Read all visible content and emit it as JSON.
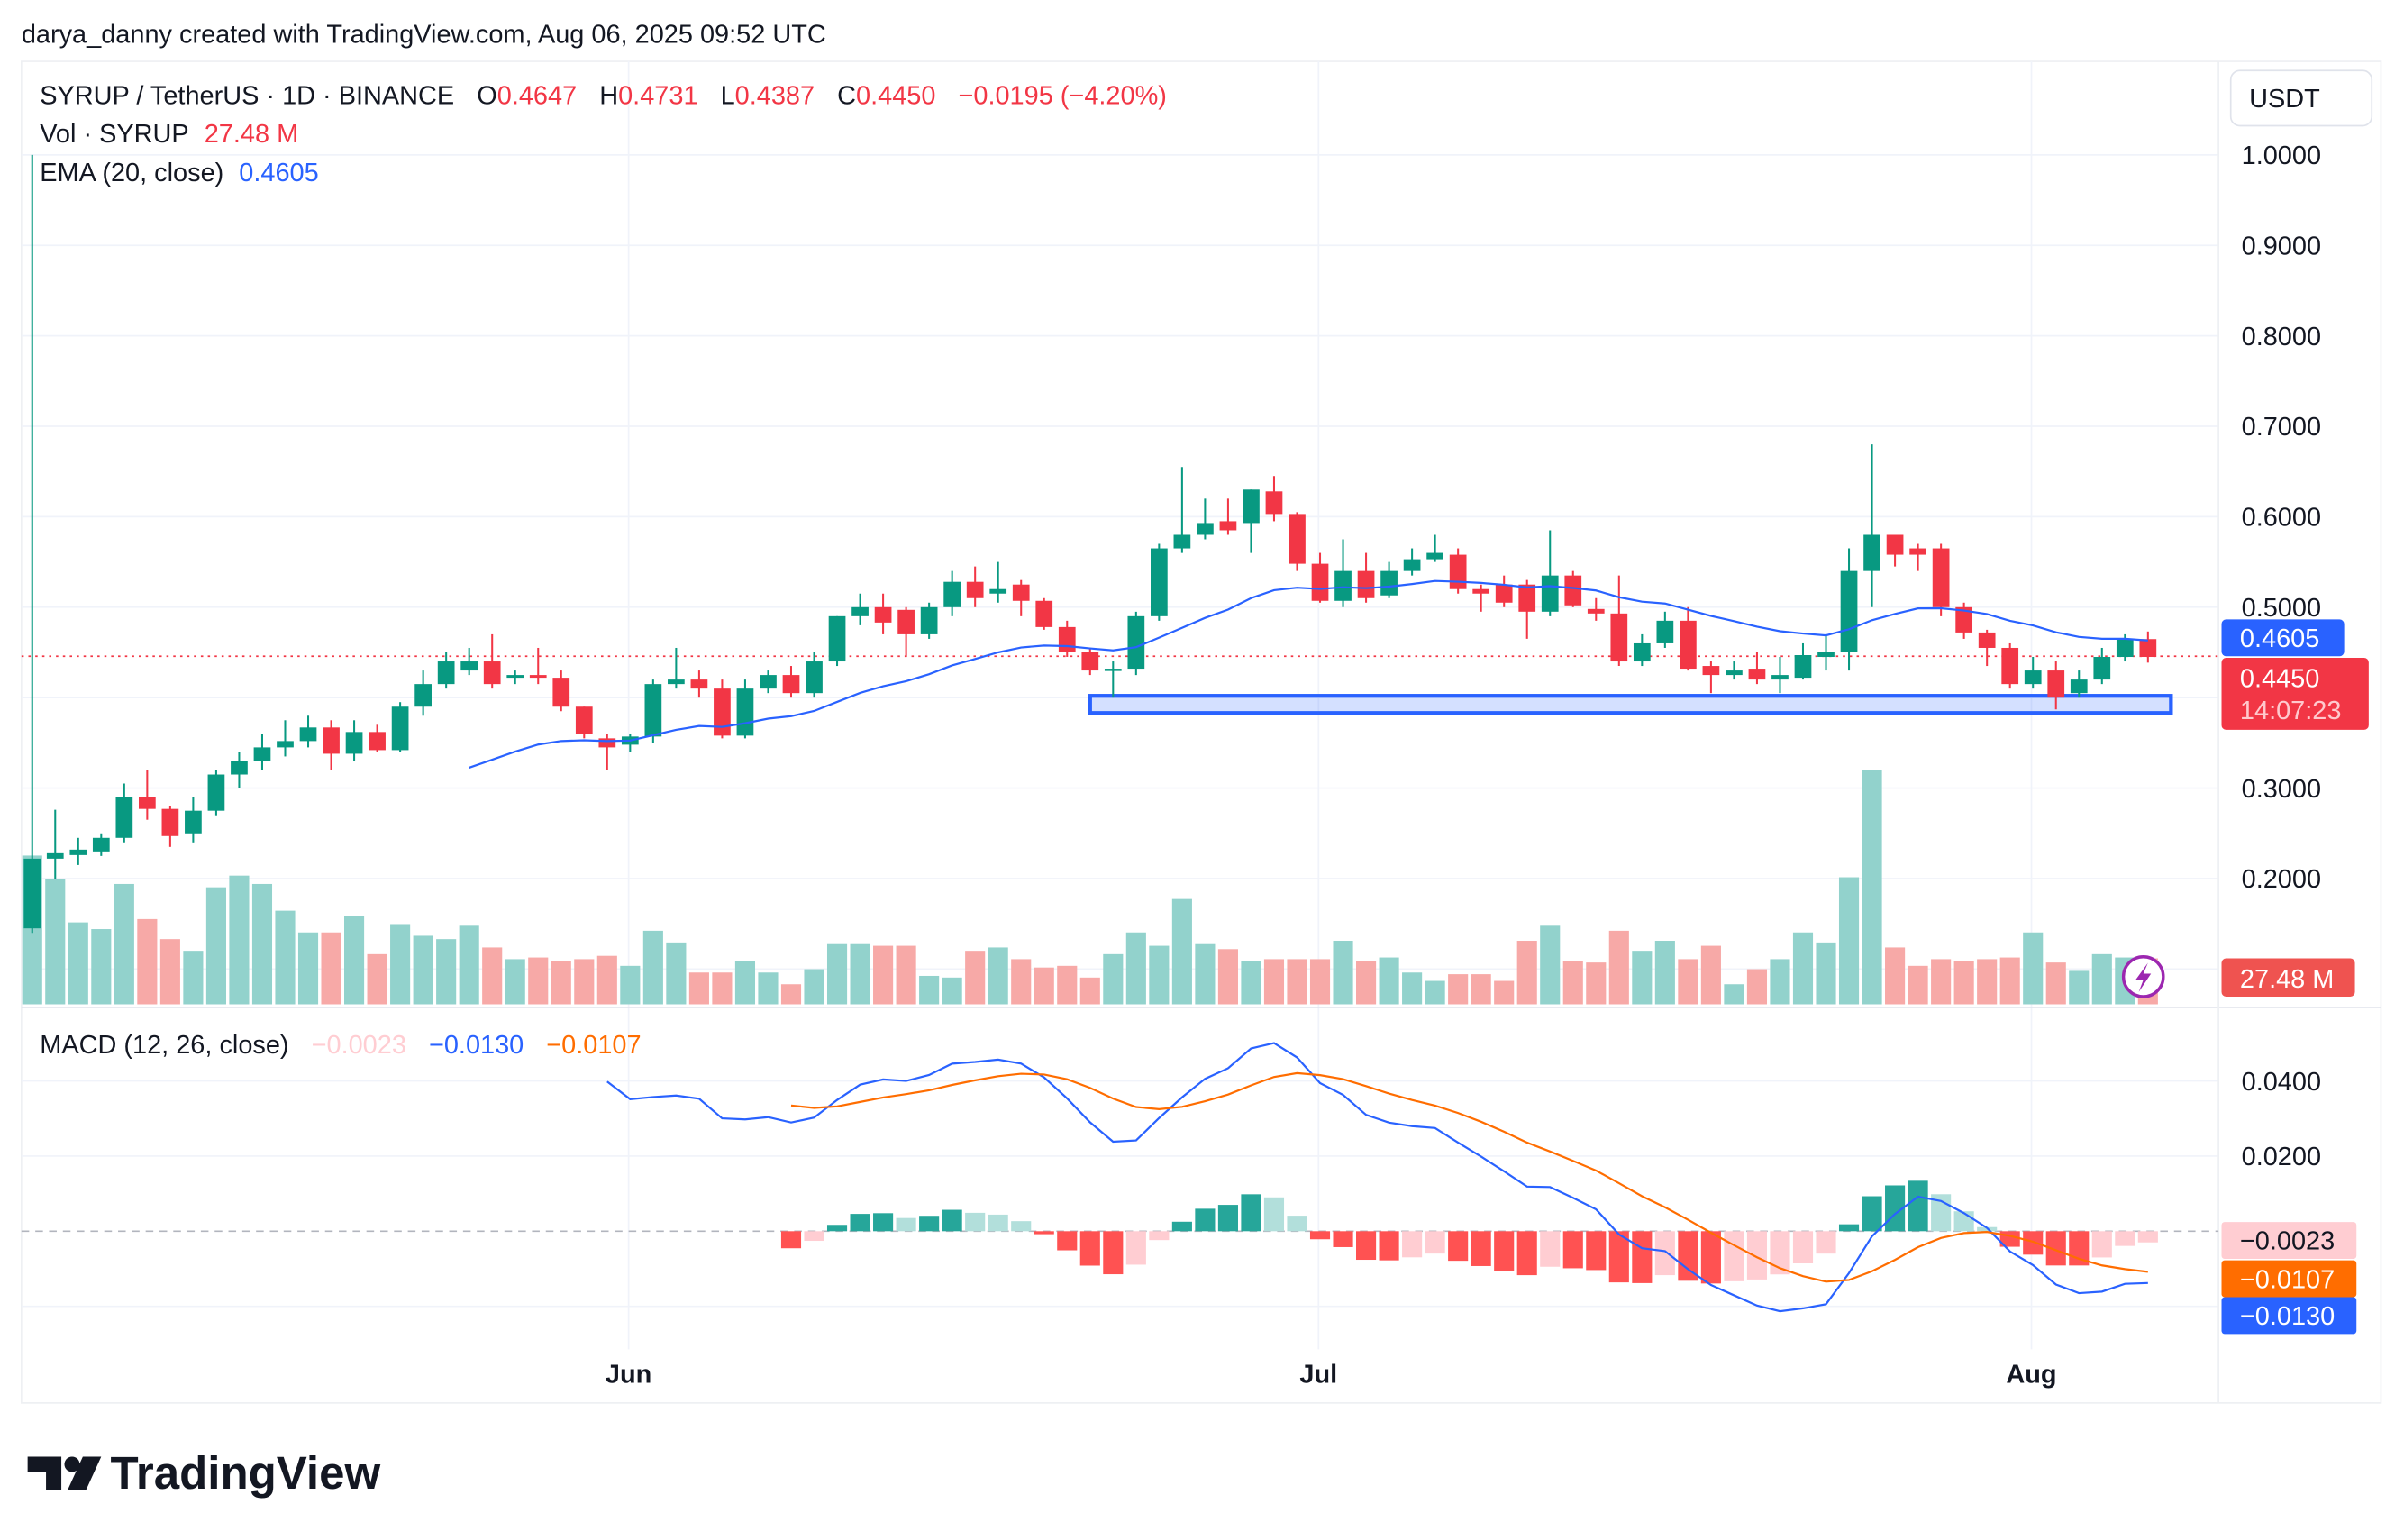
{
  "header": {
    "credit": "darya_danny created with TradingView.com, Aug 06, 2025 09:52 UTC"
  },
  "legend": {
    "symbol": "SYRUP / TetherUS · 1D · BINANCE",
    "o_label": "O",
    "o_value": "0.4647",
    "h_label": "H",
    "h_value": "0.4731",
    "l_label": "L",
    "l_value": "0.4387",
    "c_label": "C",
    "c_value": "0.4450",
    "change": "−0.0195 (−4.20%)",
    "vol_label": "Vol · SYRUP",
    "vol_value": "27.48 M",
    "ema_label": "EMA (20, close)",
    "ema_value": "0.4605",
    "macd_label": "MACD (12, 26, close)",
    "macd_hist": "−0.0023",
    "macd_line": "−0.0130",
    "macd_signal": "−0.0107"
  },
  "axis": {
    "currency": "USDT",
    "price_ticks": [
      "1.0000",
      "0.9000",
      "0.8000",
      "0.7000",
      "0.6000",
      "0.5000",
      "0.3000",
      "0.2000"
    ],
    "price_tick_values": [
      1.0,
      0.9,
      0.8,
      0.7,
      0.6,
      0.5,
      0.3,
      0.2
    ],
    "macd_ticks": [
      "0.0400",
      "0.0200"
    ],
    "macd_tick_values": [
      0.04,
      0.02
    ],
    "time_labels": [
      "Jun",
      "Jul",
      "Aug"
    ],
    "time_label_dates": [
      "2025-06-01",
      "2025-07-01",
      "2025-08-01"
    ]
  },
  "badges": {
    "ema": "0.4605",
    "price": "0.4450",
    "countdown": "14:07:23",
    "volume": "27.48 M",
    "macd_hist": "−0.0023",
    "macd_signal": "−0.0107",
    "macd_line": "−0.0130"
  },
  "colors": {
    "up": "#089981",
    "down": "#f23645",
    "ema": "#2962ff",
    "macd": "#2962ff",
    "signal": "#ff6d00",
    "vol_up": "#92d2cc",
    "vol_down": "#f7a9a7",
    "zone": "#2962ff"
  },
  "support_zone": {
    "from_date": "2025-06-21",
    "to_date": "2025-08-07",
    "low": 0.383,
    "high": 0.402
  },
  "footer": {
    "brand": "TradingView"
  },
  "chart_data": {
    "type": "candlestick",
    "title": "SYRUP / TetherUS · 1D · BINANCE",
    "ylim": [
      0.1,
      1.0
    ],
    "dates": [
      "2025-05-06",
      "2025-05-07",
      "2025-05-08",
      "2025-05-09",
      "2025-05-10",
      "2025-05-11",
      "2025-05-12",
      "2025-05-13",
      "2025-05-14",
      "2025-05-15",
      "2025-05-16",
      "2025-05-17",
      "2025-05-18",
      "2025-05-19",
      "2025-05-20",
      "2025-05-21",
      "2025-05-22",
      "2025-05-23",
      "2025-05-24",
      "2025-05-25",
      "2025-05-26",
      "2025-05-27",
      "2025-05-28",
      "2025-05-29",
      "2025-05-30",
      "2025-05-31",
      "2025-06-01",
      "2025-06-02",
      "2025-06-03",
      "2025-06-04",
      "2025-06-05",
      "2025-06-06",
      "2025-06-07",
      "2025-06-08",
      "2025-06-09",
      "2025-06-10",
      "2025-06-11",
      "2025-06-12",
      "2025-06-13",
      "2025-06-14",
      "2025-06-15",
      "2025-06-16",
      "2025-06-17",
      "2025-06-18",
      "2025-06-19",
      "2025-06-20",
      "2025-06-21",
      "2025-06-22",
      "2025-06-23",
      "2025-06-24",
      "2025-06-25",
      "2025-06-26",
      "2025-06-27",
      "2025-06-28",
      "2025-06-29",
      "2025-06-30",
      "2025-07-01",
      "2025-07-02",
      "2025-07-03",
      "2025-07-04",
      "2025-07-05",
      "2025-07-06",
      "2025-07-07",
      "2025-07-08",
      "2025-07-09",
      "2025-07-10",
      "2025-07-11",
      "2025-07-12",
      "2025-07-13",
      "2025-07-14",
      "2025-07-15",
      "2025-07-16",
      "2025-07-17",
      "2025-07-18",
      "2025-07-19",
      "2025-07-20",
      "2025-07-21",
      "2025-07-22",
      "2025-07-23",
      "2025-07-24",
      "2025-07-25",
      "2025-07-26",
      "2025-07-27",
      "2025-07-28",
      "2025-07-29",
      "2025-07-30",
      "2025-07-31",
      "2025-08-01",
      "2025-08-02",
      "2025-08-03",
      "2025-08-04",
      "2025-08-05",
      "2025-08-06"
    ],
    "open": [
      0.145,
      0.222,
      0.226,
      0.23,
      0.245,
      0.29,
      0.277,
      0.25,
      0.275,
      0.315,
      0.33,
      0.345,
      0.352,
      0.367,
      0.338,
      0.362,
      0.342,
      0.39,
      0.415,
      0.43,
      0.44,
      0.422,
      0.425,
      0.422,
      0.39,
      0.355,
      0.348,
      0.357,
      0.415,
      0.42,
      0.41,
      0.358,
      0.41,
      0.425,
      0.405,
      0.44,
      0.49,
      0.5,
      0.497,
      0.47,
      0.5,
      0.528,
      0.515,
      0.525,
      0.507,
      0.478,
      0.45,
      0.43,
      0.432,
      0.49,
      0.565,
      0.58,
      0.595,
      0.593,
      0.628,
      0.603,
      0.548,
      0.507,
      0.54,
      0.513,
      0.54,
      0.553,
      0.558,
      0.52,
      0.525,
      0.525,
      0.495,
      0.535,
      0.498,
      0.493,
      0.44,
      0.46,
      0.485,
      0.435,
      0.425,
      0.432,
      0.42,
      0.422,
      0.445,
      0.45,
      0.54,
      0.58,
      0.565,
      0.565,
      0.5,
      0.472,
      0.455,
      0.415,
      0.43,
      0.405,
      0.42,
      0.445,
      0.4647
    ],
    "high": [
      1.0,
      0.276,
      0.245,
      0.25,
      0.305,
      0.32,
      0.28,
      0.29,
      0.32,
      0.34,
      0.36,
      0.375,
      0.38,
      0.375,
      0.375,
      0.37,
      0.395,
      0.43,
      0.45,
      0.455,
      0.47,
      0.43,
      0.455,
      0.43,
      0.39,
      0.36,
      0.36,
      0.42,
      0.455,
      0.43,
      0.42,
      0.42,
      0.43,
      0.435,
      0.45,
      0.49,
      0.515,
      0.515,
      0.5,
      0.505,
      0.54,
      0.545,
      0.55,
      0.53,
      0.51,
      0.485,
      0.455,
      0.44,
      0.495,
      0.57,
      0.655,
      0.62,
      0.62,
      0.63,
      0.645,
      0.605,
      0.56,
      0.575,
      0.56,
      0.55,
      0.565,
      0.58,
      0.565,
      0.525,
      0.535,
      0.53,
      0.585,
      0.54,
      0.51,
      0.535,
      0.47,
      0.495,
      0.5,
      0.44,
      0.44,
      0.45,
      0.445,
      0.46,
      0.47,
      0.565,
      0.68,
      0.58,
      0.57,
      0.57,
      0.505,
      0.475,
      0.46,
      0.445,
      0.44,
      0.43,
      0.455,
      0.47,
      0.4731
    ],
    "low": [
      0.14,
      0.2,
      0.215,
      0.225,
      0.24,
      0.265,
      0.235,
      0.24,
      0.27,
      0.3,
      0.32,
      0.335,
      0.345,
      0.32,
      0.33,
      0.34,
      0.34,
      0.38,
      0.41,
      0.425,
      0.41,
      0.415,
      0.415,
      0.385,
      0.355,
      0.32,
      0.34,
      0.35,
      0.41,
      0.4,
      0.355,
      0.355,
      0.405,
      0.4,
      0.4,
      0.435,
      0.48,
      0.47,
      0.445,
      0.465,
      0.49,
      0.5,
      0.505,
      0.49,
      0.475,
      0.445,
      0.425,
      0.4,
      0.425,
      0.485,
      0.56,
      0.575,
      0.58,
      0.56,
      0.595,
      0.54,
      0.505,
      0.5,
      0.505,
      0.51,
      0.535,
      0.55,
      0.515,
      0.495,
      0.5,
      0.465,
      0.49,
      0.5,
      0.485,
      0.435,
      0.435,
      0.455,
      0.43,
      0.405,
      0.42,
      0.415,
      0.405,
      0.42,
      0.43,
      0.43,
      0.5,
      0.545,
      0.54,
      0.49,
      0.465,
      0.435,
      0.41,
      0.41,
      0.387,
      0.4,
      0.415,
      0.44,
      0.4387
    ],
    "close": [
      0.222,
      0.228,
      0.232,
      0.245,
      0.29,
      0.277,
      0.247,
      0.275,
      0.315,
      0.33,
      0.345,
      0.352,
      0.367,
      0.338,
      0.362,
      0.342,
      0.39,
      0.415,
      0.44,
      0.44,
      0.415,
      0.425,
      0.422,
      0.39,
      0.36,
      0.345,
      0.357,
      0.415,
      0.42,
      0.41,
      0.358,
      0.41,
      0.425,
      0.405,
      0.44,
      0.49,
      0.5,
      0.483,
      0.47,
      0.5,
      0.528,
      0.51,
      0.52,
      0.507,
      0.478,
      0.45,
      0.43,
      0.432,
      0.49,
      0.565,
      0.58,
      0.593,
      0.585,
      0.63,
      0.603,
      0.548,
      0.507,
      0.54,
      0.51,
      0.54,
      0.553,
      0.56,
      0.52,
      0.515,
      0.505,
      0.495,
      0.535,
      0.502,
      0.493,
      0.44,
      0.46,
      0.485,
      0.432,
      0.425,
      0.43,
      0.42,
      0.425,
      0.447,
      0.45,
      0.54,
      0.58,
      0.558,
      0.558,
      0.5,
      0.472,
      0.455,
      0.415,
      0.43,
      0.4,
      0.42,
      0.445,
      0.465,
      0.445
    ],
    "volume_millions": [
      89,
      75,
      49,
      45,
      72,
      51,
      39,
      32,
      70,
      77,
      72,
      56,
      43,
      43,
      53,
      30,
      48,
      41,
      39,
      47,
      34,
      27,
      28,
      26,
      27,
      29,
      23,
      44,
      37,
      19,
      19,
      26,
      19,
      12,
      21,
      36,
      36,
      35,
      35,
      17,
      16,
      32,
      34,
      27,
      22,
      23,
      16,
      30,
      43,
      35,
      63,
      36,
      33,
      26,
      27,
      27,
      27,
      38,
      26,
      28,
      19,
      14,
      18,
      18,
      14,
      38,
      47,
      26,
      25,
      44,
      32,
      38,
      27,
      35,
      12,
      21,
      27,
      43,
      37,
      76,
      140,
      34,
      23,
      27,
      26,
      27,
      28,
      43,
      25,
      20,
      30,
      28,
      27.48
    ],
    "indicators": [
      "EMA (20, close)",
      "MACD (12, 26, close)"
    ]
  }
}
